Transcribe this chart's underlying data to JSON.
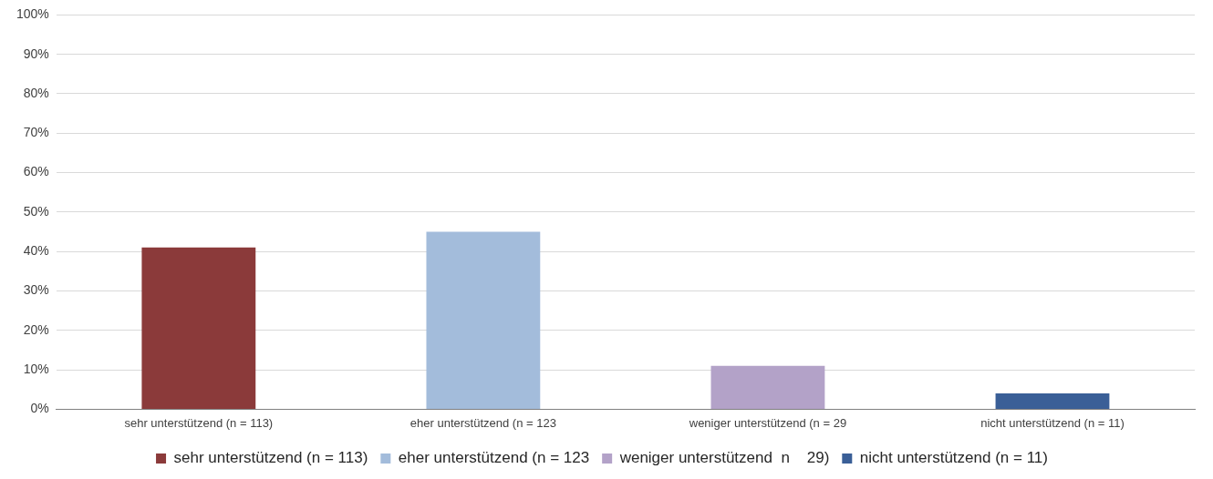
{
  "chart_data": {
    "type": "bar",
    "categories": [
      "sehr unterstützend (n = 113)",
      "eher unterstützend (n = 123",
      "weniger unterstützend (n = 29",
      "nicht unterstützend (n = 11)"
    ],
    "series": [
      {
        "name": "sehr unterstützend (n = 113)",
        "color": "#8b3a3a",
        "values": [
          41,
          null,
          null,
          null
        ]
      },
      {
        "name": "eher unterstützend (n = 123",
        "color": "#a3bcdb",
        "values": [
          null,
          45,
          null,
          null
        ]
      },
      {
        "name": "weniger unterstützend  n    29)",
        "color": "#b3a2c8",
        "values": [
          null,
          null,
          11,
          null
        ]
      },
      {
        "name": "nicht unterstützend (n = 11)",
        "color": "#3a5f97",
        "values": [
          null,
          null,
          null,
          4
        ]
      }
    ],
    "ylim": [
      0,
      100
    ],
    "yticks": [
      {
        "value": 0,
        "label": "0%"
      },
      {
        "value": 10,
        "label": "10%"
      },
      {
        "value": 20,
        "label": "20%"
      },
      {
        "value": 30,
        "label": "30%"
      },
      {
        "value": 40,
        "label": "40%"
      },
      {
        "value": 50,
        "label": "50%"
      },
      {
        "value": 60,
        "label": "60%"
      },
      {
        "value": 70,
        "label": "70%"
      },
      {
        "value": 80,
        "label": "80%"
      },
      {
        "value": 90,
        "label": "90%"
      },
      {
        "value": 100,
        "label": "100%"
      }
    ],
    "grid": "y",
    "legend": "bottom"
  }
}
